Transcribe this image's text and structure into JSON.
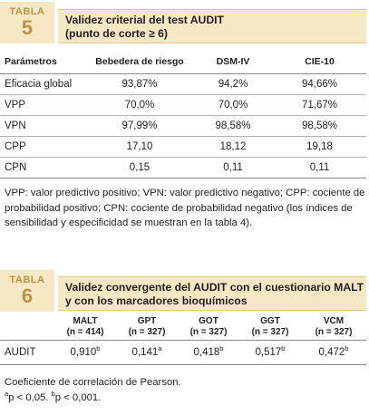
{
  "table5": {
    "badge_label": "TABLA",
    "badge_number": "5",
    "title_line1": "Validez criterial del test AUDIT",
    "title_line2": "(punto de corte ≥ 6)",
    "headers": [
      "Parámetros",
      "Bebedera de riesgo",
      "DSM-IV",
      "CIE-10"
    ],
    "rows": [
      [
        "Eficacia global",
        "93,87%",
        "94,2%",
        "94,66%"
      ],
      [
        "VPP",
        "70,0%",
        "70,0%",
        "71,67%"
      ],
      [
        "VPN",
        "97,99%",
        "98,58%",
        "98,58%"
      ],
      [
        "CPP",
        "17,10",
        "18,12",
        "19,18"
      ],
      [
        "CPN",
        "0,15",
        "0,11",
        "0,11"
      ]
    ],
    "footnote": "VPP: valor predictivo positivo; VPN: valor predictivo negativo; CPP: cociente de probabilidad positivo; CPN: cociente de probabilidad negativo (los índices de sensibilidad y especificidad se muestran en la tabla 4)."
  },
  "table6": {
    "badge_label": "TABLA",
    "badge_number": "6",
    "title_line1": "Validez convergente del AUDIT con el cuestionario MALT",
    "title_line2": "y con los marcadores bioquímicos",
    "headers": [
      {
        "name": "MALT",
        "n": "(n = 414)"
      },
      {
        "name": "GPT",
        "n": "(n = 327)"
      },
      {
        "name": "GOT",
        "n": "(n = 327)"
      },
      {
        "name": "GGT",
        "n": "(n = 327)"
      },
      {
        "name": "VCM",
        "n": "(n = 327)"
      }
    ],
    "row_label": "AUDIT",
    "values": [
      {
        "v": "0,910",
        "sup": "b"
      },
      {
        "v": "0,141",
        "sup": "a"
      },
      {
        "v": "0,418",
        "sup": "b"
      },
      {
        "v": "0,517",
        "sup": "b"
      },
      {
        "v": "0,472",
        "sup": "b"
      }
    ],
    "footnote_line1": "Coeficiente de correlación de Pearson.",
    "footnote_a": "a",
    "footnote_a_text": "p < 0,05. ",
    "footnote_b": "b",
    "footnote_b_text": "p < 0,001."
  }
}
